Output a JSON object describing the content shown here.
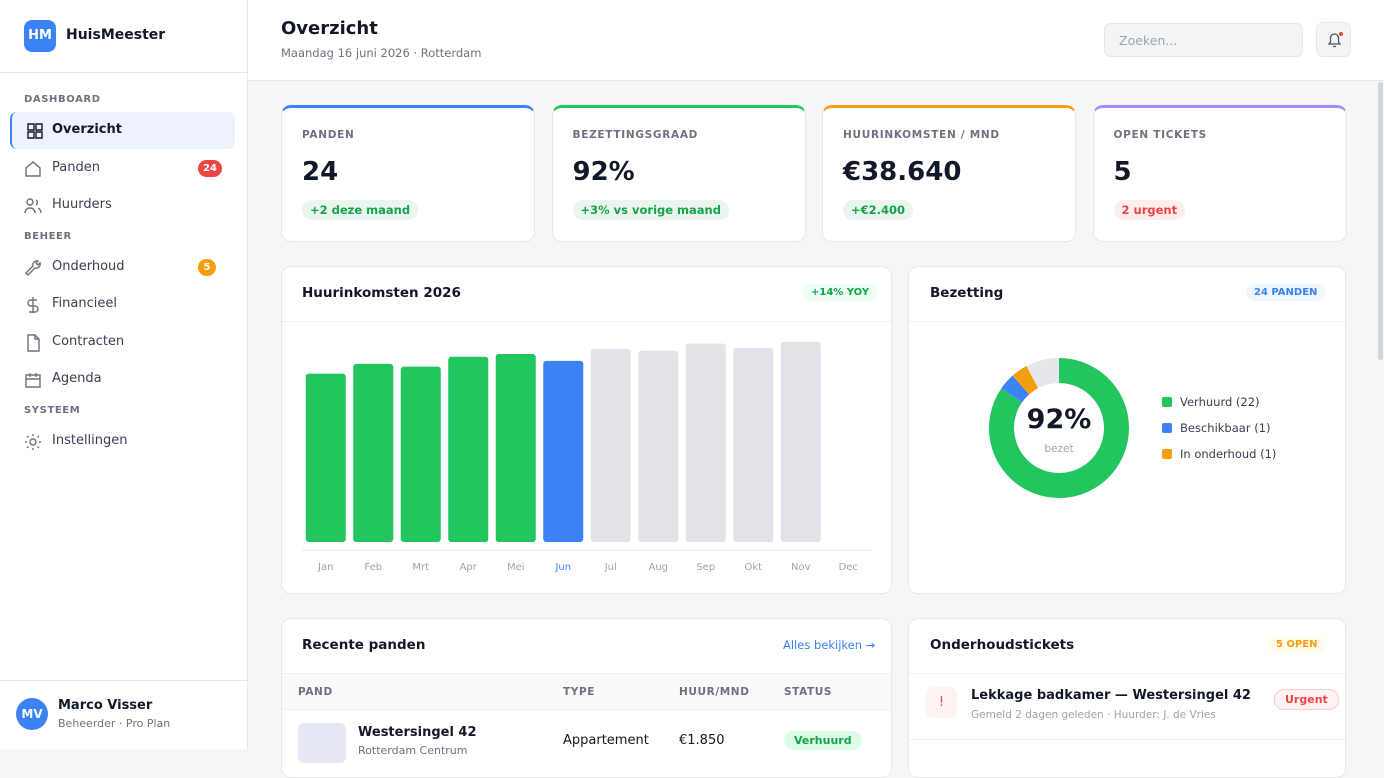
{
  "brand": {
    "logo": "HM",
    "name": "HuisMeester"
  },
  "nav": [
    {
      "title": "DASHBOARD",
      "items": [
        {
          "label": "Overzicht",
          "active": true
        },
        {
          "label": "Panden",
          "badge": "24",
          "badge_color": "#ef4444"
        },
        {
          "label": "Huurders"
        }
      ]
    },
    {
      "title": "BEHEER",
      "items": [
        {
          "label": "Onderhoud",
          "badge": "5",
          "badge_color": "#f59e0b"
        },
        {
          "label": "Financieel"
        },
        {
          "label": "Contracten"
        },
        {
          "label": "Agenda"
        }
      ]
    },
    {
      "title": "SYSTEEM",
      "items": [
        {
          "label": "Instellingen"
        }
      ]
    }
  ],
  "user": {
    "initials": "MV",
    "name": "Marco Visser",
    "role": "Beheerder · Pro Plan"
  },
  "header": {
    "title": "Overzicht",
    "subtitle": "Maandag 16 juni 2026 · Rotterdam",
    "search_placeholder": "Zoeken..."
  },
  "kpis": [
    {
      "label": "PANDEN",
      "value": "24",
      "delta": "+2 deze maand",
      "accent": "#3b82f6",
      "tone": "#16a34a"
    },
    {
      "label": "BEZETTINGSGRAAD",
      "value": "92%",
      "delta": "+3% vs vorige maand",
      "accent": "#22c55e",
      "tone": "#16a34a"
    },
    {
      "label": "HUURINKOMSTEN / MND",
      "value": "€38.640",
      "delta": "+€2.400",
      "accent": "#f59e0b",
      "tone": "#16a34a"
    },
    {
      "label": "OPEN TICKETS",
      "value": "5",
      "delta": "2 urgent",
      "accent": "#a78bfa",
      "tone": "#ef4444"
    }
  ],
  "revenue": {
    "title": "Huurinkomsten 2026",
    "badge": "+14% YOY",
    "chart_data": {
      "type": "bar",
      "categories": [
        "Jan",
        "Feb",
        "Mrt",
        "Apr",
        "Mei",
        "Jun",
        "Jul",
        "Aug",
        "Sep",
        "Okt",
        "Nov",
        "Dec"
      ],
      "values": [
        35900,
        38000,
        37400,
        39500,
        40100,
        38640,
        41200,
        40800,
        42300,
        41400,
        42700,
        null
      ],
      "colors": [
        "#22c55e",
        "#22c55e",
        "#22c55e",
        "#22c55e",
        "#22c55e",
        "#3b82f6",
        "#e1e3e8",
        "#e1e3e8",
        "#e1e3e8",
        "#e1e3e8",
        "#e1e3e8",
        "#e1e3e8"
      ],
      "ylim": [
        0,
        45000
      ]
    }
  },
  "occupancy": {
    "title": "Bezetting",
    "badge": "24 PANDEN",
    "chart_data": {
      "type": "donut",
      "center_value": "92%",
      "center_label": "bezet",
      "categories": [
        "Verhuurd (22)",
        "Beschikbaar (1)",
        "In onderhoud (1)",
        null
      ],
      "values": [
        22,
        1,
        1,
        2
      ],
      "colors": [
        "#22c55e",
        "#3b82f6",
        "#f59e0b",
        "#e5e7eb"
      ]
    }
  },
  "properties": {
    "title": "Recente panden",
    "link": "Alles bekijken →",
    "columns": [
      "PAND",
      "TYPE",
      "HUUR/MND",
      "STATUS"
    ],
    "rows": [
      {
        "name": "Westersingel 42",
        "area": "Rotterdam Centrum",
        "type": "Appartement",
        "rent": "€1.850",
        "status": "Verhuurd"
      }
    ]
  },
  "tickets": {
    "title": "Onderhoudstickets",
    "badge": "5 OPEN",
    "items": [
      {
        "icon": "!",
        "title": "Lekkage badkamer — Westersingel 42",
        "meta": "Gemeld 2 dagen geleden · Huurder: J. de Vries",
        "priority": "Urgent"
      }
    ]
  }
}
